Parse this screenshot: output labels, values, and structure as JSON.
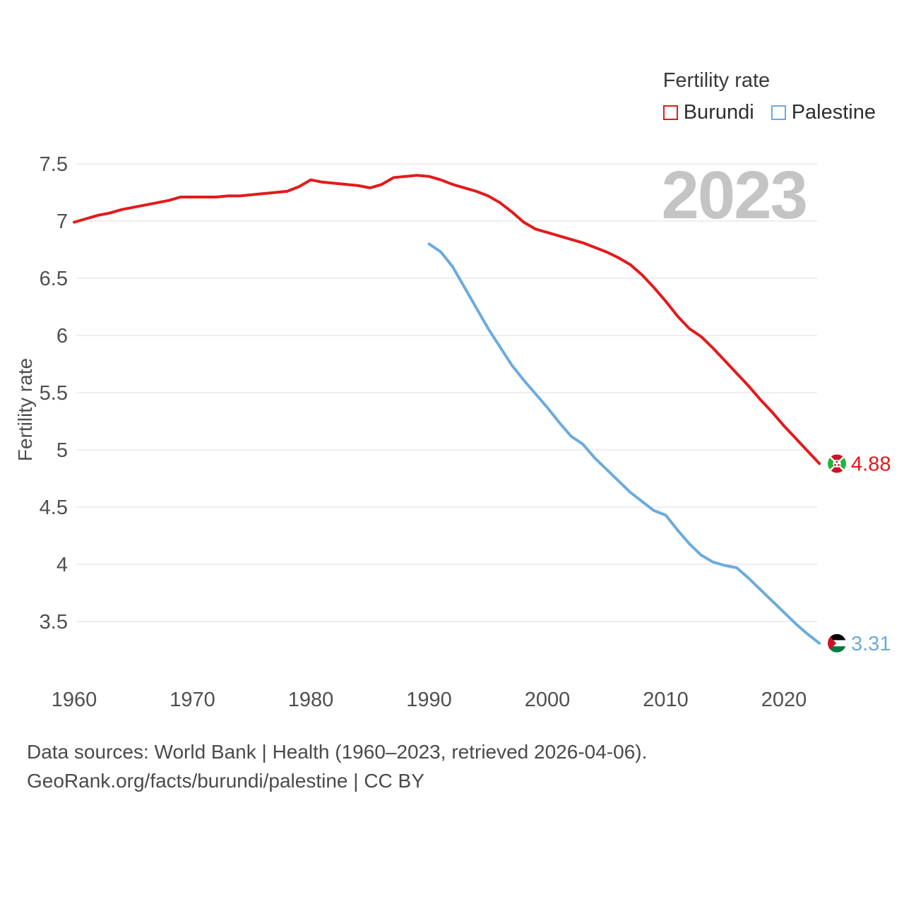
{
  "legend": {
    "title": "Fertility rate",
    "series": [
      {
        "label": "Burundi",
        "color": "#e31a1c"
      },
      {
        "label": "Palestine",
        "color": "#6cabdd"
      }
    ]
  },
  "watermark": "2023",
  "footer": {
    "line1": "Data sources: World Bank | Health (1960–2023, retrieved 2026-04-06).",
    "line2": "GeoRank.org/facts/burundi/palestine | CC BY"
  },
  "chart_data": {
    "type": "line",
    "title": "Fertility rate",
    "xlabel": "",
    "ylabel": "Fertility rate",
    "grid": true,
    "legend_position": "top-right",
    "xlim": [
      1960,
      2023
    ],
    "ylim": [
      3.1,
      7.6
    ],
    "x_ticks": [
      "1960",
      "1970",
      "1980",
      "1990",
      "2000",
      "2010",
      "2020"
    ],
    "x_tick_years": [
      1960,
      1970,
      1980,
      1990,
      2000,
      2010,
      2020
    ],
    "y_ticks": [
      "3.5",
      "4",
      "4.5",
      "5",
      "5.5",
      "6",
      "6.5",
      "7",
      "7.5"
    ],
    "y_tick_values": [
      3.5,
      4,
      4.5,
      5,
      5.5,
      6,
      6.5,
      7,
      7.5
    ],
    "series": [
      {
        "name": "Burundi",
        "id": "burundi",
        "color": "#e31a1c",
        "end_label": "4.88",
        "years": [
          1960,
          1961,
          1962,
          1963,
          1964,
          1965,
          1966,
          1967,
          1968,
          1969,
          1970,
          1971,
          1972,
          1973,
          1974,
          1975,
          1976,
          1977,
          1978,
          1979,
          1980,
          1981,
          1982,
          1983,
          1984,
          1985,
          1986,
          1987,
          1988,
          1989,
          1990,
          1991,
          1992,
          1993,
          1994,
          1995,
          1996,
          1997,
          1998,
          1999,
          2000,
          2001,
          2002,
          2003,
          2004,
          2005,
          2006,
          2007,
          2008,
          2009,
          2010,
          2011,
          2012,
          2013,
          2014,
          2015,
          2016,
          2017,
          2018,
          2019,
          2020,
          2021,
          2022,
          2023
        ],
        "values": [
          6.99,
          7.02,
          7.05,
          7.07,
          7.1,
          7.12,
          7.14,
          7.16,
          7.18,
          7.21,
          7.21,
          7.21,
          7.21,
          7.22,
          7.22,
          7.23,
          7.24,
          7.25,
          7.26,
          7.3,
          7.36,
          7.34,
          7.33,
          7.32,
          7.31,
          7.29,
          7.32,
          7.38,
          7.39,
          7.4,
          7.39,
          7.36,
          7.32,
          7.29,
          7.26,
          7.22,
          7.16,
          7.08,
          6.99,
          6.93,
          6.9,
          6.87,
          6.84,
          6.81,
          6.77,
          6.73,
          6.68,
          6.62,
          6.53,
          6.42,
          6.3,
          6.17,
          6.06,
          5.99,
          5.89,
          5.78,
          5.67,
          5.56,
          5.44,
          5.33,
          5.21,
          5.1,
          4.99,
          4.88
        ]
      },
      {
        "name": "Palestine",
        "id": "palestine",
        "color": "#6cabdd",
        "end_label": "3.31",
        "years": [
          1990,
          1991,
          1992,
          1993,
          1994,
          1995,
          1996,
          1997,
          1998,
          1999,
          2000,
          2001,
          2002,
          2003,
          2004,
          2005,
          2006,
          2007,
          2008,
          2009,
          2010,
          2011,
          2012,
          2013,
          2014,
          2015,
          2016,
          2017,
          2018,
          2019,
          2020,
          2021,
          2022,
          2023
        ],
        "values": [
          6.8,
          6.73,
          6.6,
          6.42,
          6.24,
          6.06,
          5.9,
          5.74,
          5.61,
          5.49,
          5.37,
          5.24,
          5.12,
          5.05,
          4.93,
          4.83,
          4.73,
          4.63,
          4.55,
          4.47,
          4.43,
          4.3,
          4.18,
          4.08,
          4.02,
          3.99,
          3.97,
          3.88,
          3.78,
          3.68,
          3.58,
          3.48,
          3.39,
          3.31
        ]
      }
    ]
  }
}
